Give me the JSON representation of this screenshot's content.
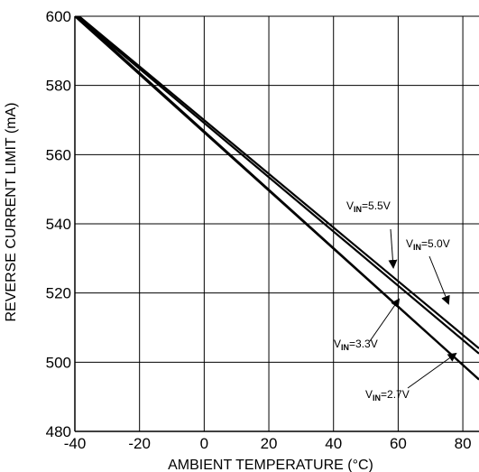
{
  "chart_data": {
    "type": "line",
    "title": "",
    "xlabel": "AMBIENT TEMPERATURE (°C)",
    "ylabel": "REVERSE CURRENT LIMIT (mA)",
    "xlim": [
      -40,
      85
    ],
    "ylim": [
      480,
      600
    ],
    "x_ticks": [
      -40,
      -20,
      0,
      20,
      40,
      60,
      80
    ],
    "y_ticks": [
      480,
      500,
      520,
      540,
      560,
      580,
      600
    ],
    "grid": true,
    "legend": "none",
    "series": [
      {
        "name": "VIN=5.5V",
        "x": [
          -40,
          85
        ],
        "y": [
          600.5,
          502.5
        ]
      },
      {
        "name": "VIN=5.0V",
        "x": [
          -40,
          85
        ],
        "y": [
          601,
          504
        ]
      },
      {
        "name": "VIN=3.3V",
        "x": [
          -40,
          85
        ],
        "y": [
          600,
          495
        ]
      },
      {
        "name": "VIN=2.7V",
        "x": [
          -40,
          85
        ],
        "y": [
          600.5,
          495
        ]
      }
    ],
    "annotations": [
      {
        "main": "V",
        "sub": "IN",
        "rest": "=5.5V",
        "points_to": [
          57,
          527
        ]
      },
      {
        "main": "V",
        "sub": "IN",
        "rest": "=5.0V",
        "points_to": [
          73,
          514
        ]
      },
      {
        "main": "V",
        "sub": "IN",
        "rest": "=3.3V",
        "points_to": [
          58,
          516
        ]
      },
      {
        "main": "V",
        "sub": "IN",
        "rest": "=2.7V",
        "points_to": [
          76,
          500
        ]
      }
    ],
    "colors": {
      "line": "#000000",
      "grid": "#000000",
      "background": "#ffffff"
    }
  }
}
